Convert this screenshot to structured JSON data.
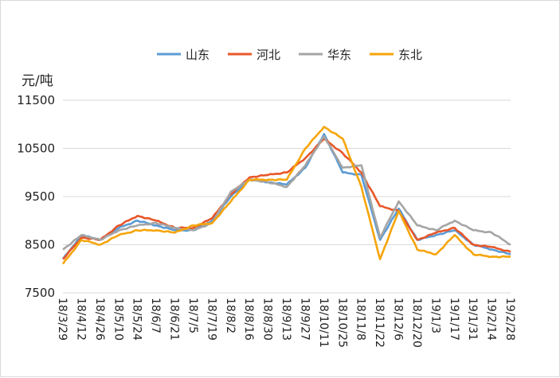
{
  "chart_data": {
    "type": "line",
    "ylabel": "元/吨",
    "ylim": [
      7500,
      11500
    ],
    "yticks": [
      7500,
      8500,
      9500,
      10500,
      11500
    ],
    "grid": "horizontal",
    "legend_position": "top",
    "categories": [
      "18/3/29",
      "18/4/12",
      "18/4/26",
      "18/5/10",
      "18/5/24",
      "18/6/7",
      "18/6/21",
      "18/7/5",
      "18/7/19",
      "18/8/2",
      "18/8/16",
      "18/8/30",
      "18/9/13",
      "18/9/27",
      "18/10/11",
      "18/10/25",
      "18/11/8",
      "18/11/22",
      "18/12/6",
      "18/12/20",
      "19/1/3",
      "19/1/17",
      "19/1/31",
      "19/2/14",
      "19/2/28"
    ],
    "series": [
      {
        "name": "山东",
        "color": "#5b9bd5",
        "values": [
          8200,
          8700,
          8600,
          8850,
          9000,
          8900,
          8800,
          8800,
          9000,
          9500,
          9850,
          9800,
          9750,
          10100,
          10800,
          10000,
          9950,
          8600,
          9250,
          8600,
          8700,
          8800,
          8500,
          8400,
          8300
        ]
      },
      {
        "name": "河北",
        "color": "#e8572a",
        "values": [
          8200,
          8650,
          8600,
          8900,
          9100,
          9000,
          8850,
          8850,
          9050,
          9550,
          9900,
          9950,
          10000,
          10300,
          10700,
          10400,
          10000,
          9300,
          9200,
          8600,
          8750,
          8850,
          8500,
          8450,
          8350
        ]
      },
      {
        "name": "华东",
        "color": "#a5a5a5",
        "values": [
          8400,
          8700,
          8600,
          8800,
          8900,
          8950,
          8850,
          8800,
          8950,
          9600,
          9850,
          9800,
          9700,
          10150,
          10750,
          10100,
          10150,
          8650,
          9400,
          8900,
          8800,
          9000,
          8800,
          8750,
          8500
        ]
      },
      {
        "name": "东北",
        "color": "#f5a50a",
        "values": [
          8100,
          8600,
          8500,
          8700,
          8800,
          8800,
          8750,
          8900,
          8950,
          9400,
          9850,
          9850,
          9850,
          10500,
          10950,
          10700,
          9700,
          8200,
          9200,
          8400,
          8300,
          8700,
          8300,
          8250,
          8250
        ]
      }
    ]
  }
}
